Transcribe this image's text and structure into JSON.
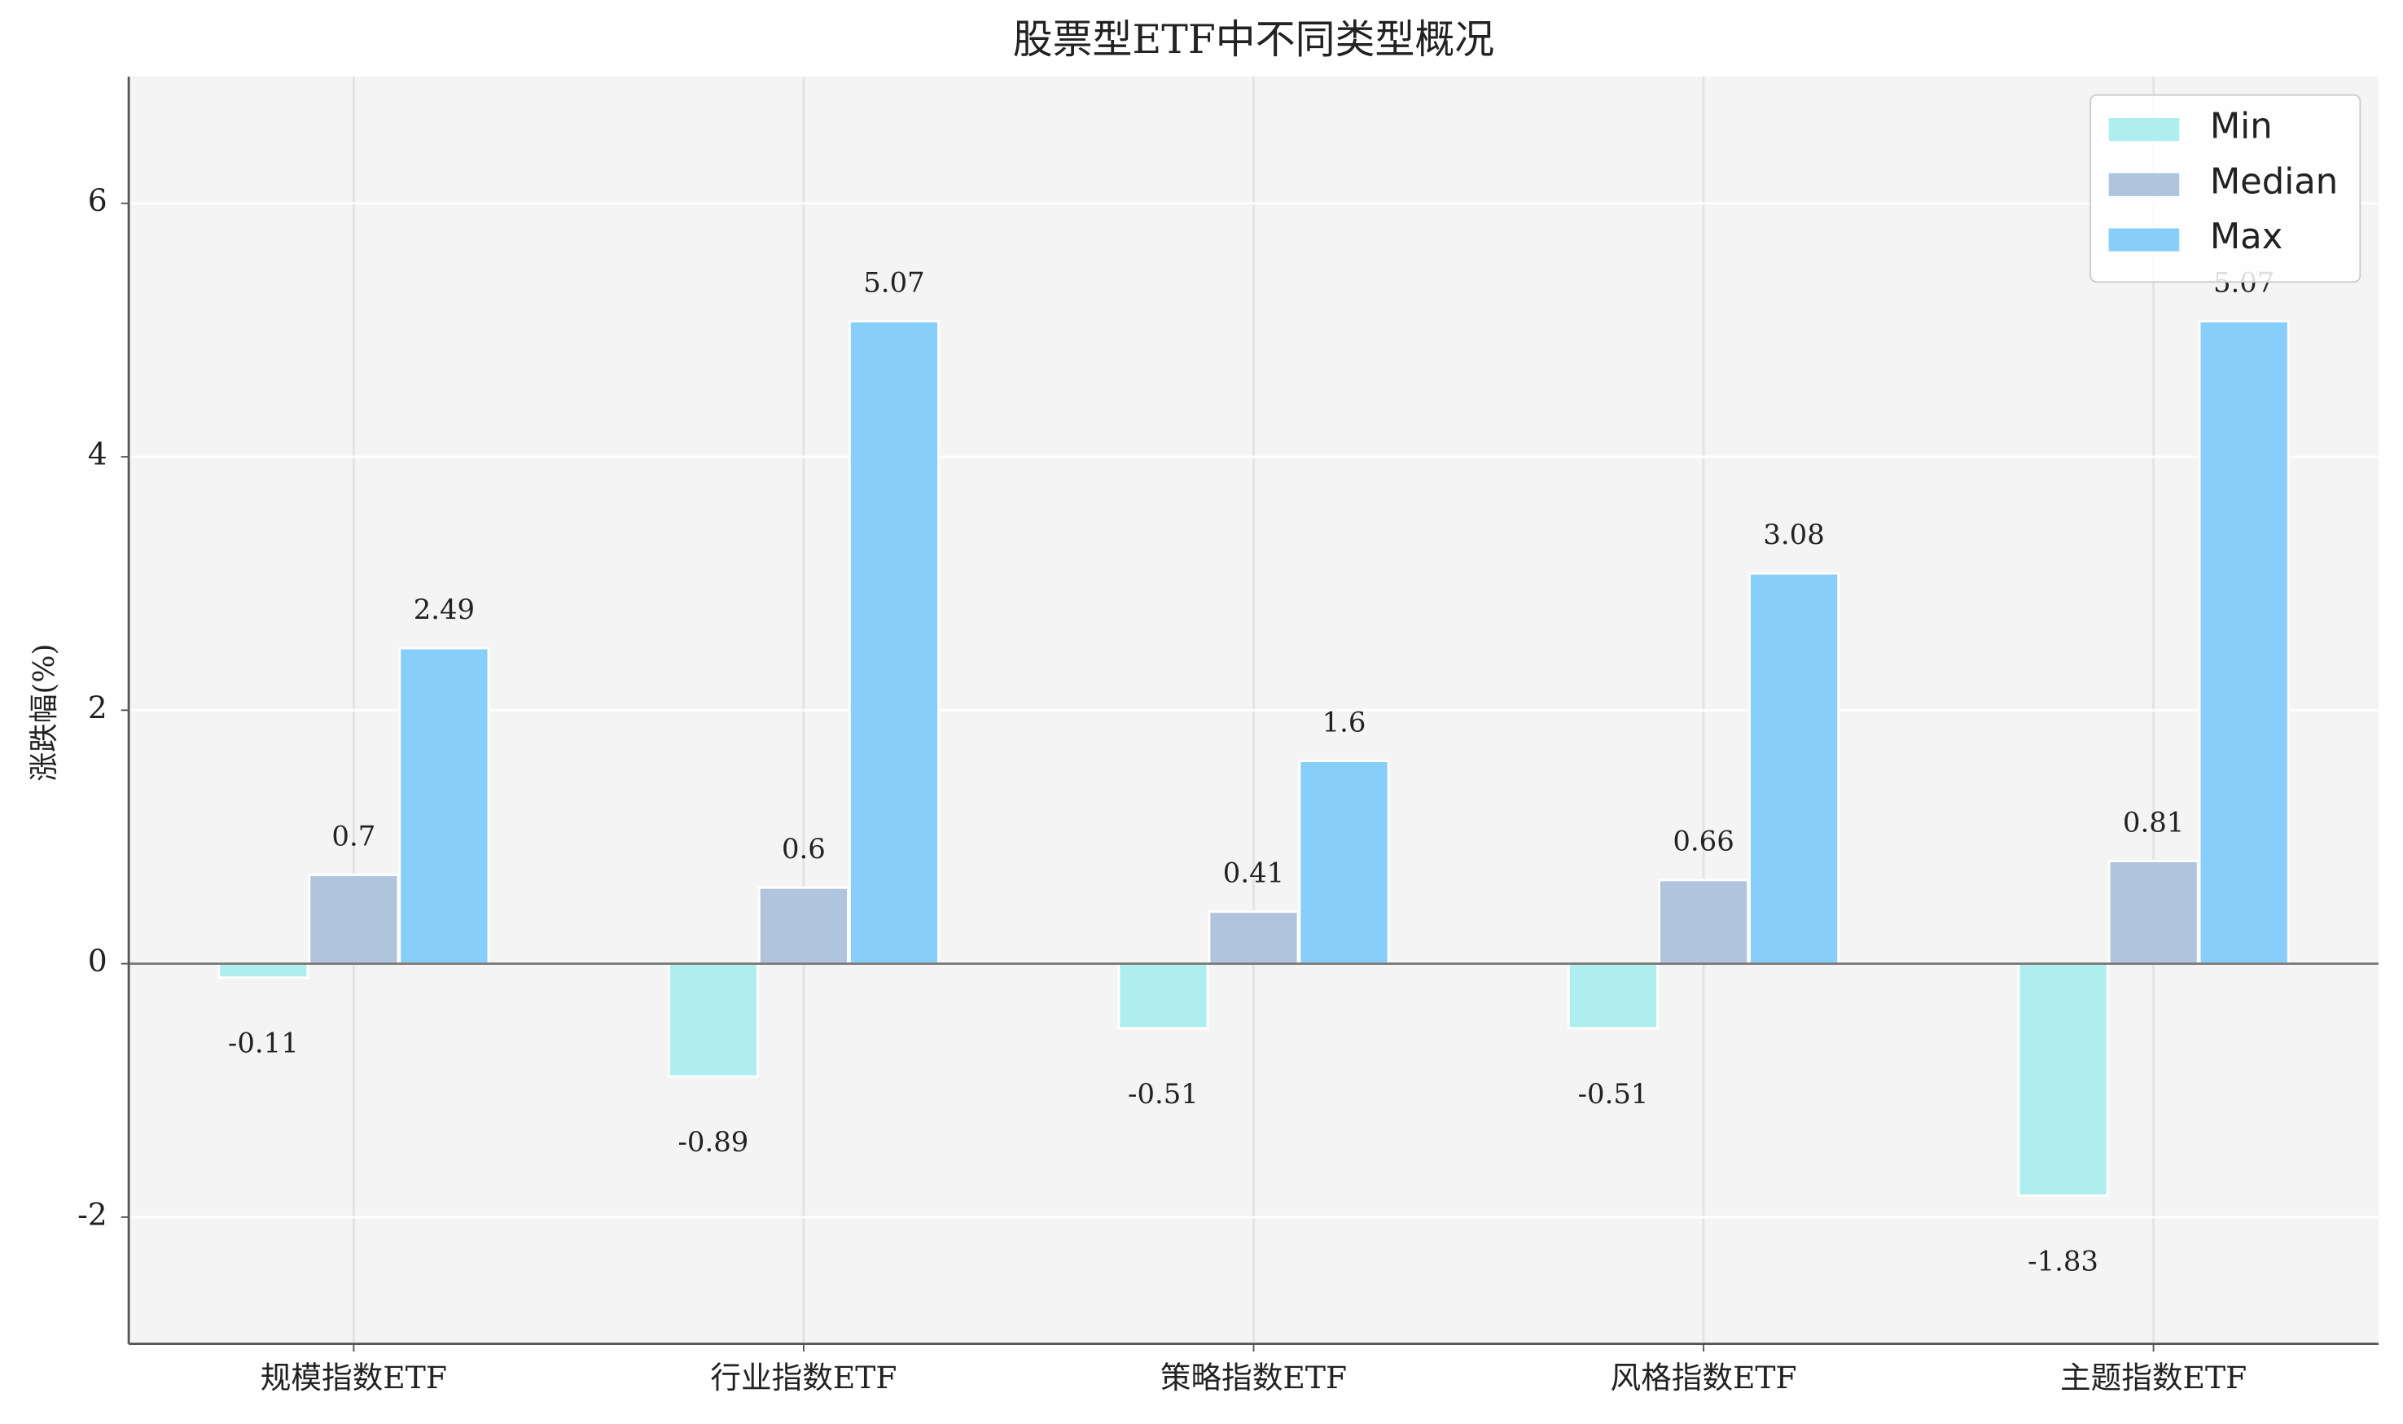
{
  "chart_data": {
    "type": "bar",
    "title": "股票型ETF中不同类型概况",
    "ylabel": "涨跌幅(%)",
    "categories": [
      "规模指数ETF",
      "行业指数ETF",
      "策略指数ETF",
      "风格指数ETF",
      "主题指数ETF"
    ],
    "series": [
      {
        "name": "Min",
        "color": "#afeeee",
        "values": [
          -0.11,
          -0.89,
          -0.51,
          -0.51,
          -1.83
        ]
      },
      {
        "name": "Median",
        "color": "#b0c4de",
        "values": [
          0.7,
          0.6,
          0.41,
          0.66,
          0.81
        ]
      },
      {
        "name": "Max",
        "color": "#87cefa",
        "values": [
          2.49,
          5.07,
          1.6,
          3.08,
          5.07
        ]
      }
    ],
    "ylim": [
      -3,
      7
    ],
    "yticks": [
      -2,
      0,
      2,
      4,
      6
    ],
    "grid": true,
    "legend": "upper right"
  }
}
